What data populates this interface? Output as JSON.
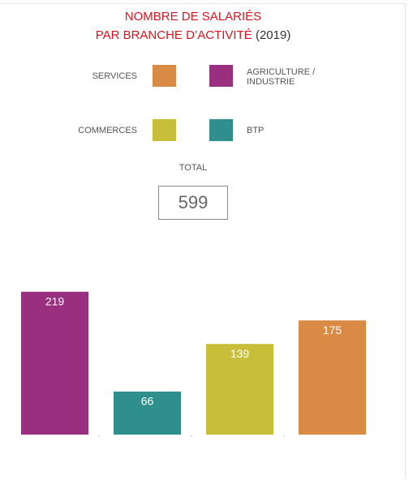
{
  "chart_data": {
    "type": "bar",
    "title": [
      "NOMBRE DE SALARIÉS",
      "PAR BRANCHE D’ACTIVITÉ"
    ],
    "subtitle": "(2019)",
    "categories": [
      "AGRICULTURE / INDUSTRIE",
      "BTP",
      "COMMERCES",
      "SERVICES"
    ],
    "values": [
      219,
      66,
      139,
      175
    ],
    "colors": [
      "#9b2f7f",
      "#2e8f8c",
      "#c7bf3a",
      "#d98a45"
    ],
    "ylim": [
      0,
      220
    ],
    "total_label": "TOTAL",
    "total": 599
  }
}
